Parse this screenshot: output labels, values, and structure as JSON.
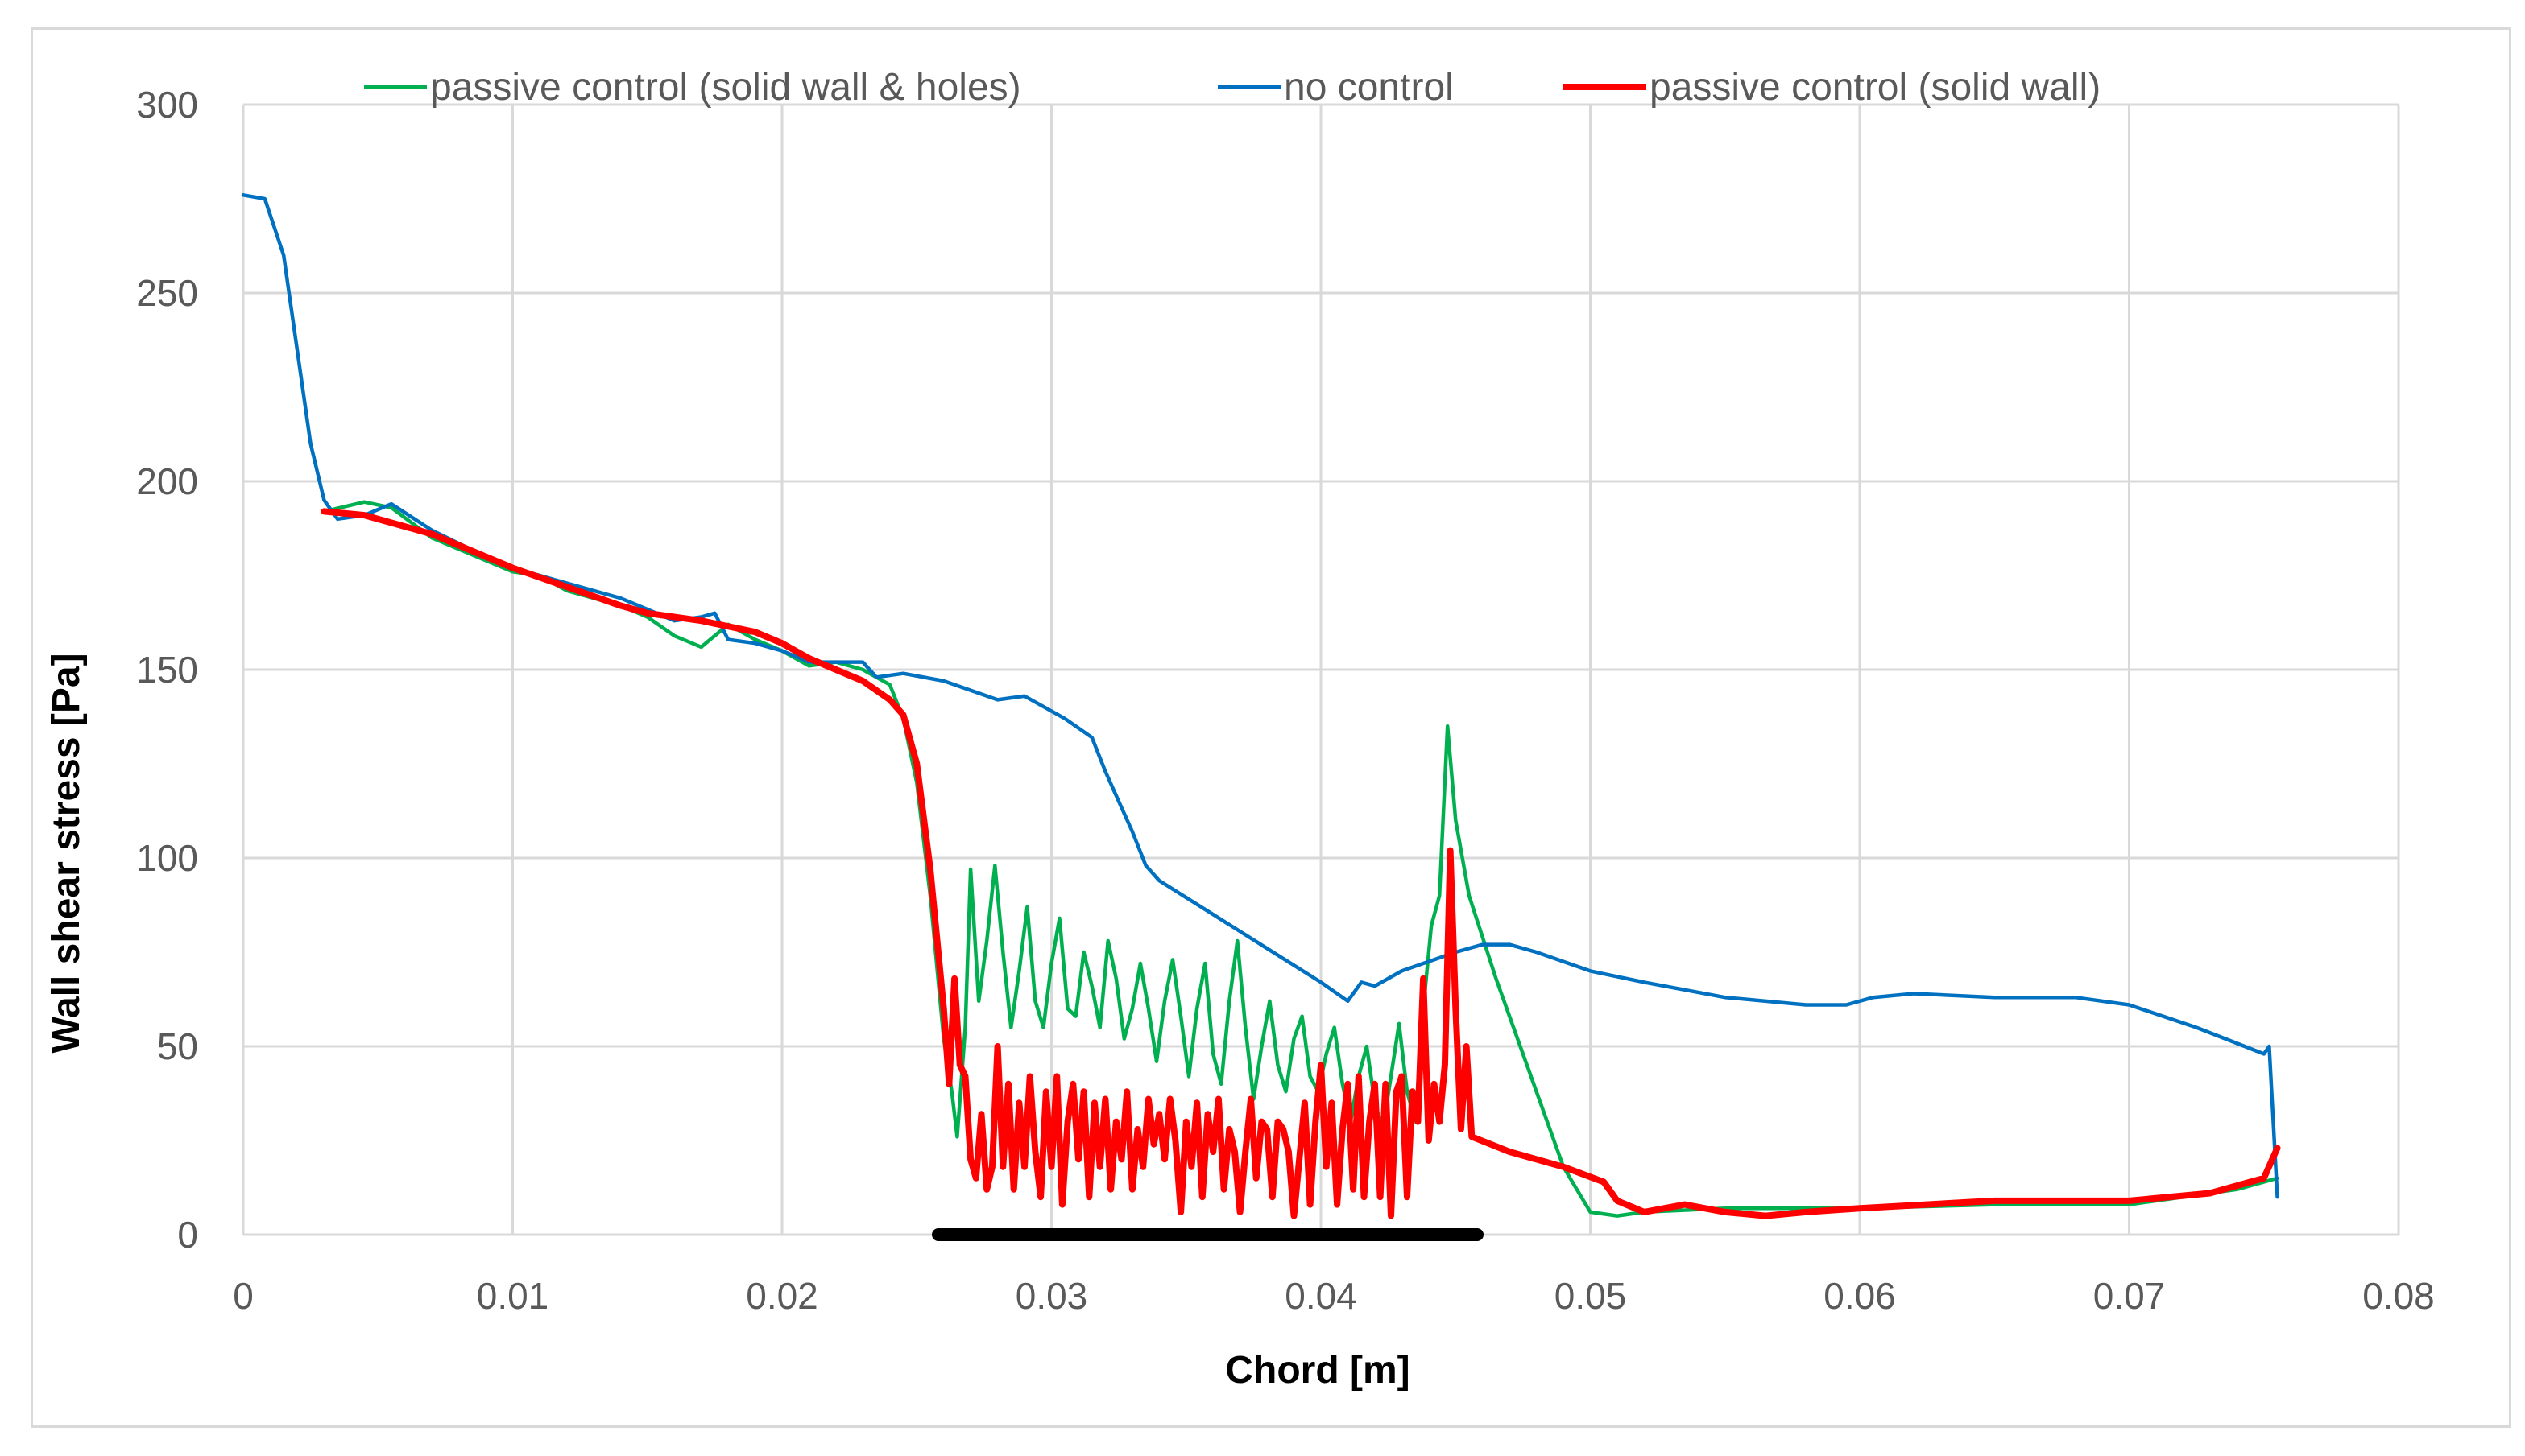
{
  "chart_data": {
    "type": "line",
    "xlabel": "Chord [m]",
    "ylabel": "Wall shear stress [Pa]",
    "xlim": [
      0,
      0.08
    ],
    "ylim": [
      0,
      300
    ],
    "x_ticks": [
      "0",
      "0.01",
      "0.02",
      "0.03",
      "0.04",
      "0.05",
      "0.06",
      "0.07",
      "0.08"
    ],
    "y_ticks": [
      "0",
      "50",
      "100",
      "150",
      "200",
      "250",
      "300"
    ],
    "grid": true,
    "legend_position": "top",
    "highlight_segment": {
      "x_start": 0.0258,
      "x_end": 0.0458,
      "y": 0,
      "color": "#000000"
    },
    "series": [
      {
        "name": "passive control (solid wall & holes)",
        "color": "#00b050",
        "points": [
          [
            0.003,
            192
          ],
          [
            0.0045,
            194.5
          ],
          [
            0.0055,
            193
          ],
          [
            0.007,
            185
          ],
          [
            0.009,
            179
          ],
          [
            0.01,
            176
          ],
          [
            0.011,
            175
          ],
          [
            0.012,
            171
          ],
          [
            0.013,
            169
          ],
          [
            0.014,
            167
          ],
          [
            0.015,
            164
          ],
          [
            0.016,
            159
          ],
          [
            0.017,
            156
          ],
          [
            0.0175,
            159
          ],
          [
            0.018,
            162
          ],
          [
            0.019,
            158
          ],
          [
            0.02,
            155
          ],
          [
            0.021,
            151
          ],
          [
            0.022,
            152
          ],
          [
            0.023,
            150
          ],
          [
            0.024,
            146
          ],
          [
            0.0245,
            137
          ],
          [
            0.025,
            120
          ],
          [
            0.0255,
            90
          ],
          [
            0.026,
            52
          ],
          [
            0.0263,
            38
          ],
          [
            0.0265,
            26
          ],
          [
            0.0268,
            55
          ],
          [
            0.027,
            97
          ],
          [
            0.0273,
            62
          ],
          [
            0.0276,
            78
          ],
          [
            0.0279,
            98
          ],
          [
            0.0282,
            75
          ],
          [
            0.0285,
            55
          ],
          [
            0.0288,
            70
          ],
          [
            0.0291,
            87
          ],
          [
            0.0294,
            62
          ],
          [
            0.0297,
            55
          ],
          [
            0.03,
            72
          ],
          [
            0.0303,
            84
          ],
          [
            0.0306,
            60
          ],
          [
            0.0309,
            58
          ],
          [
            0.0312,
            75
          ],
          [
            0.0315,
            66
          ],
          [
            0.0318,
            55
          ],
          [
            0.0321,
            78
          ],
          [
            0.0324,
            68
          ],
          [
            0.0327,
            52
          ],
          [
            0.033,
            60
          ],
          [
            0.0333,
            72
          ],
          [
            0.0336,
            60
          ],
          [
            0.0339,
            46
          ],
          [
            0.0342,
            62
          ],
          [
            0.0345,
            73
          ],
          [
            0.0348,
            58
          ],
          [
            0.0351,
            42
          ],
          [
            0.0354,
            60
          ],
          [
            0.0357,
            72
          ],
          [
            0.036,
            48
          ],
          [
            0.0363,
            40
          ],
          [
            0.0366,
            62
          ],
          [
            0.0369,
            78
          ],
          [
            0.0372,
            55
          ],
          [
            0.0375,
            36
          ],
          [
            0.0378,
            50
          ],
          [
            0.0381,
            62
          ],
          [
            0.0384,
            45
          ],
          [
            0.0387,
            38
          ],
          [
            0.039,
            52
          ],
          [
            0.0393,
            58
          ],
          [
            0.0396,
            42
          ],
          [
            0.0399,
            38
          ],
          [
            0.0402,
            48
          ],
          [
            0.0405,
            55
          ],
          [
            0.0408,
            40
          ],
          [
            0.0411,
            30
          ],
          [
            0.0414,
            42
          ],
          [
            0.0417,
            50
          ],
          [
            0.042,
            35
          ],
          [
            0.0423,
            28
          ],
          [
            0.0426,
            42
          ],
          [
            0.0429,
            56
          ],
          [
            0.0432,
            38
          ],
          [
            0.0435,
            30
          ],
          [
            0.0438,
            60
          ],
          [
            0.0441,
            82
          ],
          [
            0.0444,
            90
          ],
          [
            0.0447,
            135
          ],
          [
            0.045,
            110
          ],
          [
            0.0455,
            90
          ],
          [
            0.0465,
            68
          ],
          [
            0.048,
            38
          ],
          [
            0.049,
            18
          ],
          [
            0.05,
            6
          ],
          [
            0.051,
            5
          ],
          [
            0.052,
            6
          ],
          [
            0.055,
            7
          ],
          [
            0.058,
            7
          ],
          [
            0.06,
            7
          ],
          [
            0.065,
            8
          ],
          [
            0.07,
            8
          ],
          [
            0.074,
            12
          ],
          [
            0.0755,
            15
          ]
        ]
      },
      {
        "name": "no control",
        "color": "#0070c0",
        "points": [
          [
            0.0,
            276
          ],
          [
            0.0008,
            275
          ],
          [
            0.0015,
            260
          ],
          [
            0.002,
            235
          ],
          [
            0.0025,
            210
          ],
          [
            0.003,
            195
          ],
          [
            0.0035,
            190
          ],
          [
            0.0045,
            191
          ],
          [
            0.0055,
            194
          ],
          [
            0.007,
            187
          ],
          [
            0.009,
            180
          ],
          [
            0.01,
            177
          ],
          [
            0.012,
            173
          ],
          [
            0.014,
            169
          ],
          [
            0.015,
            166
          ],
          [
            0.016,
            163
          ],
          [
            0.017,
            164
          ],
          [
            0.0175,
            165
          ],
          [
            0.018,
            158
          ],
          [
            0.019,
            157
          ],
          [
            0.02,
            155
          ],
          [
            0.021,
            152
          ],
          [
            0.023,
            152
          ],
          [
            0.0235,
            148
          ],
          [
            0.0245,
            149
          ],
          [
            0.026,
            147
          ],
          [
            0.028,
            142
          ],
          [
            0.029,
            143
          ],
          [
            0.0305,
            137
          ],
          [
            0.0315,
            132
          ],
          [
            0.032,
            123
          ],
          [
            0.0325,
            115
          ],
          [
            0.033,
            107
          ],
          [
            0.0335,
            98
          ],
          [
            0.034,
            94
          ],
          [
            0.036,
            85
          ],
          [
            0.038,
            76
          ],
          [
            0.04,
            67
          ],
          [
            0.041,
            62
          ],
          [
            0.0415,
            67
          ],
          [
            0.042,
            66
          ],
          [
            0.043,
            70
          ],
          [
            0.045,
            75
          ],
          [
            0.046,
            77
          ],
          [
            0.047,
            77
          ],
          [
            0.048,
            75
          ],
          [
            0.05,
            70
          ],
          [
            0.052,
            67
          ],
          [
            0.055,
            63
          ],
          [
            0.058,
            61
          ],
          [
            0.0595,
            61
          ],
          [
            0.0605,
            63
          ],
          [
            0.062,
            64
          ],
          [
            0.065,
            63
          ],
          [
            0.068,
            63
          ],
          [
            0.07,
            61
          ],
          [
            0.0725,
            55
          ],
          [
            0.075,
            48
          ],
          [
            0.0752,
            50
          ],
          [
            0.0755,
            10
          ]
        ]
      },
      {
        "name": "passive control (solid wall)",
        "color": "#ff0000",
        "points": [
          [
            0.003,
            192
          ],
          [
            0.0045,
            191
          ],
          [
            0.007,
            186
          ],
          [
            0.009,
            180
          ],
          [
            0.01,
            177
          ],
          [
            0.012,
            172
          ],
          [
            0.014,
            167
          ],
          [
            0.015,
            165
          ],
          [
            0.017,
            163
          ],
          [
            0.019,
            160
          ],
          [
            0.02,
            157
          ],
          [
            0.021,
            153
          ],
          [
            0.022,
            150
          ],
          [
            0.023,
            147
          ],
          [
            0.024,
            142
          ],
          [
            0.0245,
            138
          ],
          [
            0.025,
            125
          ],
          [
            0.0255,
            97
          ],
          [
            0.026,
            60
          ],
          [
            0.0262,
            40
          ],
          [
            0.0264,
            68
          ],
          [
            0.0266,
            45
          ],
          [
            0.0268,
            42
          ],
          [
            0.027,
            20
          ],
          [
            0.0272,
            15
          ],
          [
            0.0274,
            32
          ],
          [
            0.0276,
            12
          ],
          [
            0.0278,
            18
          ],
          [
            0.028,
            50
          ],
          [
            0.0282,
            18
          ],
          [
            0.0284,
            40
          ],
          [
            0.0286,
            12
          ],
          [
            0.0288,
            35
          ],
          [
            0.029,
            18
          ],
          [
            0.0292,
            42
          ],
          [
            0.0294,
            22
          ],
          [
            0.0296,
            10
          ],
          [
            0.0298,
            38
          ],
          [
            0.03,
            18
          ],
          [
            0.0302,
            42
          ],
          [
            0.0304,
            8
          ],
          [
            0.0306,
            30
          ],
          [
            0.0308,
            40
          ],
          [
            0.031,
            20
          ],
          [
            0.0312,
            38
          ],
          [
            0.0314,
            10
          ],
          [
            0.0316,
            35
          ],
          [
            0.0318,
            18
          ],
          [
            0.032,
            36
          ],
          [
            0.0322,
            12
          ],
          [
            0.0324,
            30
          ],
          [
            0.0326,
            20
          ],
          [
            0.0328,
            38
          ],
          [
            0.033,
            12
          ],
          [
            0.0332,
            28
          ],
          [
            0.0334,
            18
          ],
          [
            0.0336,
            36
          ],
          [
            0.0338,
            24
          ],
          [
            0.034,
            32
          ],
          [
            0.0342,
            20
          ],
          [
            0.0344,
            36
          ],
          [
            0.0346,
            25
          ],
          [
            0.0348,
            6
          ],
          [
            0.035,
            30
          ],
          [
            0.0352,
            18
          ],
          [
            0.0354,
            35
          ],
          [
            0.0356,
            10
          ],
          [
            0.0358,
            32
          ],
          [
            0.036,
            22
          ],
          [
            0.0362,
            36
          ],
          [
            0.0364,
            12
          ],
          [
            0.0366,
            28
          ],
          [
            0.0368,
            22
          ],
          [
            0.037,
            6
          ],
          [
            0.0372,
            22
          ],
          [
            0.0374,
            36
          ],
          [
            0.0376,
            15
          ],
          [
            0.0378,
            30
          ],
          [
            0.038,
            28
          ],
          [
            0.0382,
            10
          ],
          [
            0.0384,
            30
          ],
          [
            0.0386,
            28
          ],
          [
            0.0388,
            22
          ],
          [
            0.039,
            5
          ],
          [
            0.0392,
            20
          ],
          [
            0.0394,
            35
          ],
          [
            0.0396,
            8
          ],
          [
            0.0398,
            30
          ],
          [
            0.04,
            45
          ],
          [
            0.0402,
            18
          ],
          [
            0.0404,
            35
          ],
          [
            0.0406,
            8
          ],
          [
            0.0408,
            28
          ],
          [
            0.041,
            40
          ],
          [
            0.0412,
            12
          ],
          [
            0.0414,
            42
          ],
          [
            0.0416,
            10
          ],
          [
            0.0418,
            30
          ],
          [
            0.042,
            40
          ],
          [
            0.0422,
            10
          ],
          [
            0.0424,
            40
          ],
          [
            0.0426,
            5
          ],
          [
            0.0428,
            38
          ],
          [
            0.043,
            42
          ],
          [
            0.0432,
            10
          ],
          [
            0.0434,
            38
          ],
          [
            0.0436,
            30
          ],
          [
            0.0438,
            68
          ],
          [
            0.044,
            25
          ],
          [
            0.0442,
            40
          ],
          [
            0.0444,
            30
          ],
          [
            0.0446,
            45
          ],
          [
            0.0448,
            102
          ],
          [
            0.045,
            60
          ],
          [
            0.0452,
            28
          ],
          [
            0.0454,
            50
          ],
          [
            0.0456,
            26
          ],
          [
            0.047,
            22
          ],
          [
            0.049,
            18
          ],
          [
            0.0505,
            14
          ],
          [
            0.051,
            9
          ],
          [
            0.052,
            6
          ],
          [
            0.0535,
            8
          ],
          [
            0.055,
            6
          ],
          [
            0.0565,
            5
          ],
          [
            0.058,
            6
          ],
          [
            0.06,
            7
          ],
          [
            0.065,
            9
          ],
          [
            0.07,
            9
          ],
          [
            0.073,
            11
          ],
          [
            0.075,
            15
          ],
          [
            0.0755,
            23
          ]
        ]
      }
    ]
  }
}
